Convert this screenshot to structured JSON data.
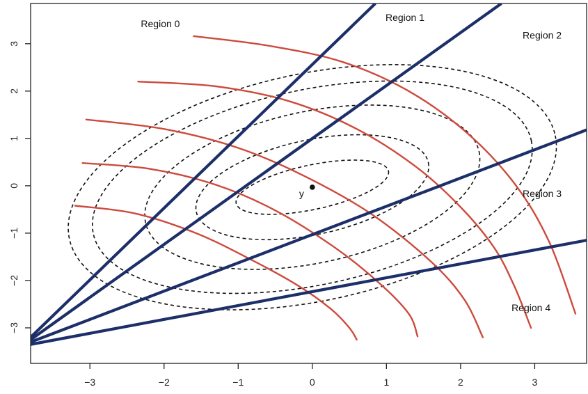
{
  "chart_data": {
    "type": "line",
    "title": "",
    "xlabel": "",
    "ylabel": "",
    "xlim": [
      -3.8,
      3.7
    ],
    "ylim": [
      -3.75,
      3.85
    ],
    "x_ticks": [
      "−3",
      "−2",
      "−1",
      "0",
      "1",
      "2",
      "3"
    ],
    "y_ticks": [
      "−3",
      "−2",
      "−1",
      "0",
      "1",
      "2",
      "3"
    ],
    "x_tick_values": [
      -3,
      -2,
      -1,
      0,
      1,
      2,
      3
    ],
    "y_tick_values": [
      -3,
      -2,
      -1,
      0,
      1,
      2,
      3
    ],
    "grid": false,
    "point": {
      "label": "y",
      "x": 0,
      "y": -0.03
    },
    "contours": {
      "center": [
        0,
        -0.03
      ],
      "angle_deg": 12,
      "semi_axes": [
        [
          1.05,
          0.47
        ],
        [
          1.6,
          1.0
        ],
        [
          2.3,
          1.6
        ],
        [
          3.02,
          2.06
        ],
        [
          3.35,
          2.4
        ]
      ],
      "color": "#111111"
    },
    "boundary_color": "#1c2f68",
    "boundaries": [
      {
        "x": [
          -3.8,
          0.85
        ],
        "y": [
          -3.2,
          3.85
        ]
      },
      {
        "x": [
          -3.8,
          2.55
        ],
        "y": [
          -3.25,
          3.85
        ]
      },
      {
        "x": [
          -3.8,
          3.7
        ],
        "y": [
          -3.3,
          1.18
        ]
      },
      {
        "x": [
          -3.8,
          3.7
        ],
        "y": [
          -3.35,
          -1.15
        ]
      }
    ],
    "curve_color": "#cd4a3d",
    "curves": [
      {
        "x": [
          -1.6,
          -0.6,
          0.4,
          1.3,
          2.1,
          2.75,
          3.2,
          3.55
        ],
        "y": [
          3.16,
          2.96,
          2.62,
          2.0,
          1.1,
          0.0,
          -1.2,
          -2.7
        ]
      },
      {
        "x": [
          -2.35,
          -1.3,
          -0.3,
          0.6,
          1.4,
          2.0,
          2.45,
          2.72,
          2.95
        ],
        "y": [
          2.2,
          2.1,
          1.78,
          1.2,
          0.4,
          -0.45,
          -1.3,
          -2.1,
          -3.0
        ]
      },
      {
        "x": [
          -3.05,
          -2.0,
          -1.0,
          -0.1,
          0.8,
          1.6,
          2.05,
          2.3
        ],
        "y": [
          1.4,
          1.2,
          0.8,
          0.2,
          -0.6,
          -1.6,
          -2.4,
          -3.2
        ]
      },
      {
        "x": [
          -3.1,
          -2.2,
          -1.3,
          -0.5,
          0.3,
          0.9,
          1.3,
          1.42
        ],
        "y": [
          0.48,
          0.36,
          0.02,
          -0.52,
          -1.3,
          -2.05,
          -2.7,
          -3.18
        ]
      },
      {
        "x": [
          -3.2,
          -2.4,
          -1.6,
          -0.9,
          -0.2,
          0.25,
          0.5,
          0.6
        ],
        "y": [
          -0.42,
          -0.58,
          -0.98,
          -1.5,
          -2.1,
          -2.6,
          -3.0,
          -3.25
        ]
      }
    ],
    "region_labels": [
      {
        "text": "Region 0",
        "x": -2.05,
        "y": 3.35
      },
      {
        "text": "Region 1",
        "x": 1.25,
        "y": 3.48
      },
      {
        "text": "Region 2",
        "x": 3.1,
        "y": 3.11
      },
      {
        "text": "Region 3",
        "x": 3.1,
        "y": -0.24
      },
      {
        "text": "Region 4",
        "x": 2.95,
        "y": -2.65
      }
    ]
  }
}
